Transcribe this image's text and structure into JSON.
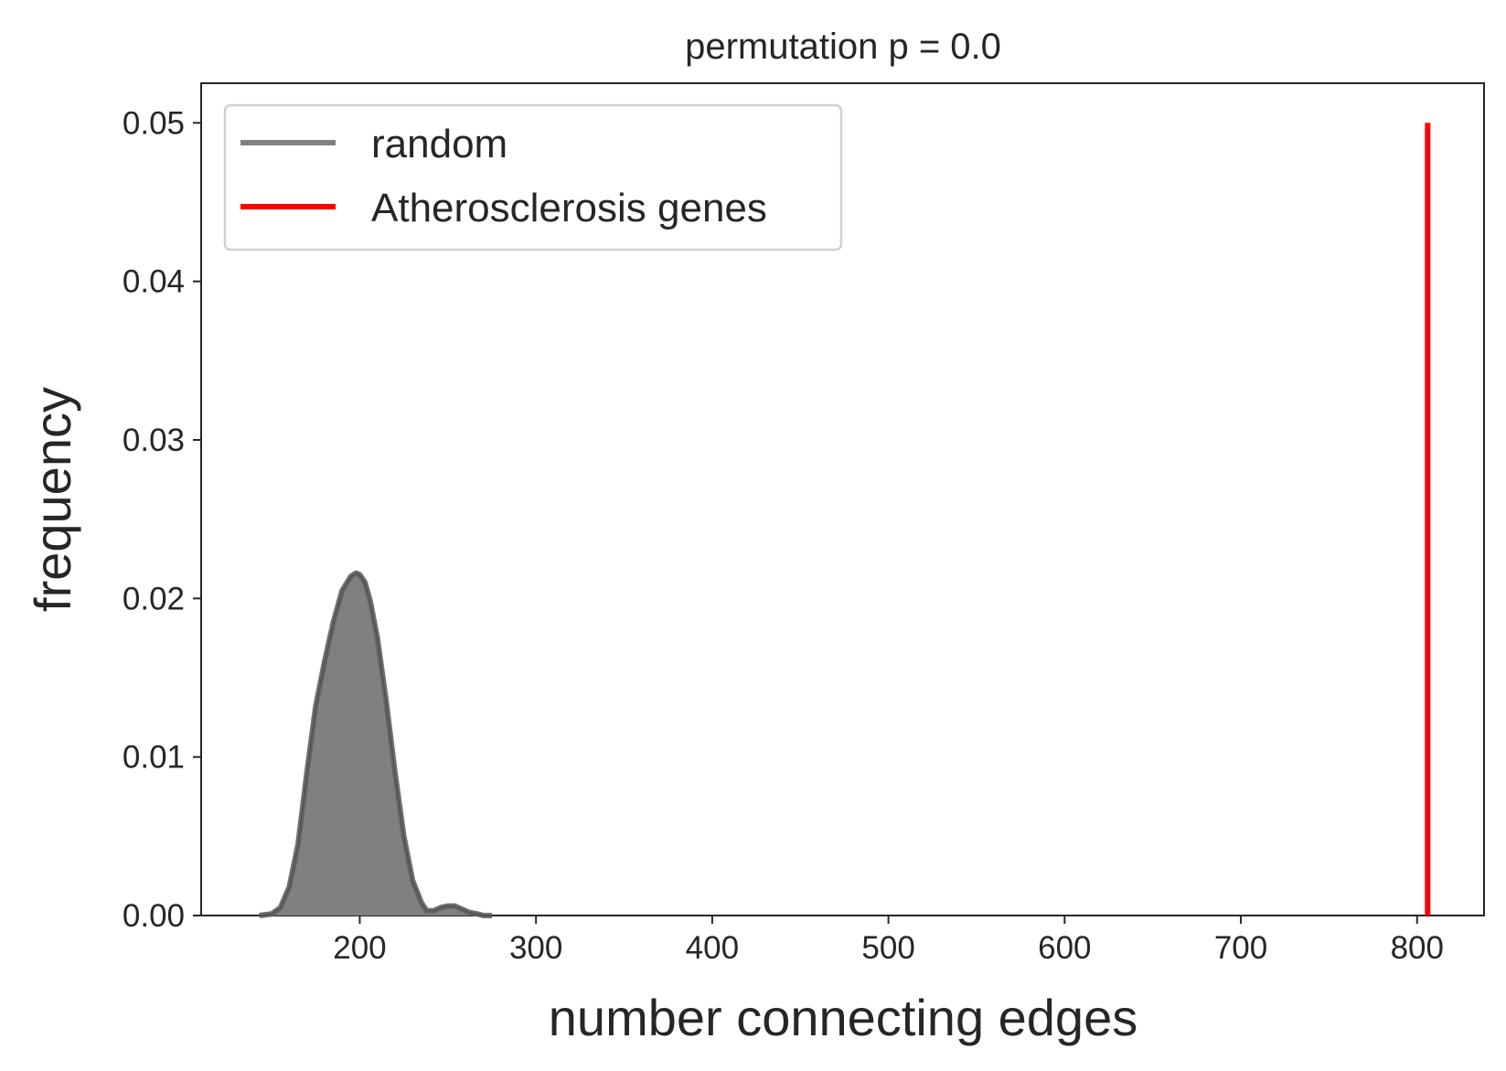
{
  "chart_data": {
    "type": "line",
    "title": "permutation p = 0.0",
    "xlabel": "number connecting edges",
    "ylabel": "frequency",
    "xlim": [
      110,
      838
    ],
    "ylim": [
      0,
      0.0525
    ],
    "grid": false,
    "xticks": [
      200,
      300,
      400,
      500,
      600,
      700,
      800
    ],
    "xtick_labels": [
      "200",
      "300",
      "400",
      "500",
      "600",
      "700",
      "800"
    ],
    "yticks": [
      0.0,
      0.01,
      0.02,
      0.03,
      0.04,
      0.05
    ],
    "ytick_labels": [
      "0.00",
      "0.01",
      "0.02",
      "0.03",
      "0.04",
      "0.05"
    ],
    "legend_position": "top-left",
    "series": [
      {
        "name": "random",
        "kind": "kde_filled",
        "color": "#808080",
        "edge_color": "#606060",
        "x": [
          143,
          150,
          155,
          160,
          165,
          170,
          175,
          180,
          185,
          190,
          195,
          198,
          200,
          203,
          206,
          210,
          215,
          220,
          225,
          230,
          235,
          238,
          242,
          246,
          250,
          254,
          258,
          262,
          267,
          270,
          275
        ],
        "y": [
          0.0,
          0.0001,
          0.0005,
          0.0018,
          0.0045,
          0.009,
          0.0132,
          0.016,
          0.0185,
          0.0205,
          0.0214,
          0.0216,
          0.0215,
          0.021,
          0.0198,
          0.0175,
          0.0135,
          0.009,
          0.005,
          0.0022,
          0.0008,
          0.0003,
          0.0003,
          0.0005,
          0.0006,
          0.0006,
          0.0004,
          0.0002,
          0.0001,
          0.0,
          0.0
        ]
      },
      {
        "name": "Atherosclerosis genes",
        "kind": "vertical_line",
        "color": "#ff0000",
        "x": 806,
        "y_range": [
          0.0,
          0.05
        ]
      }
    ]
  }
}
